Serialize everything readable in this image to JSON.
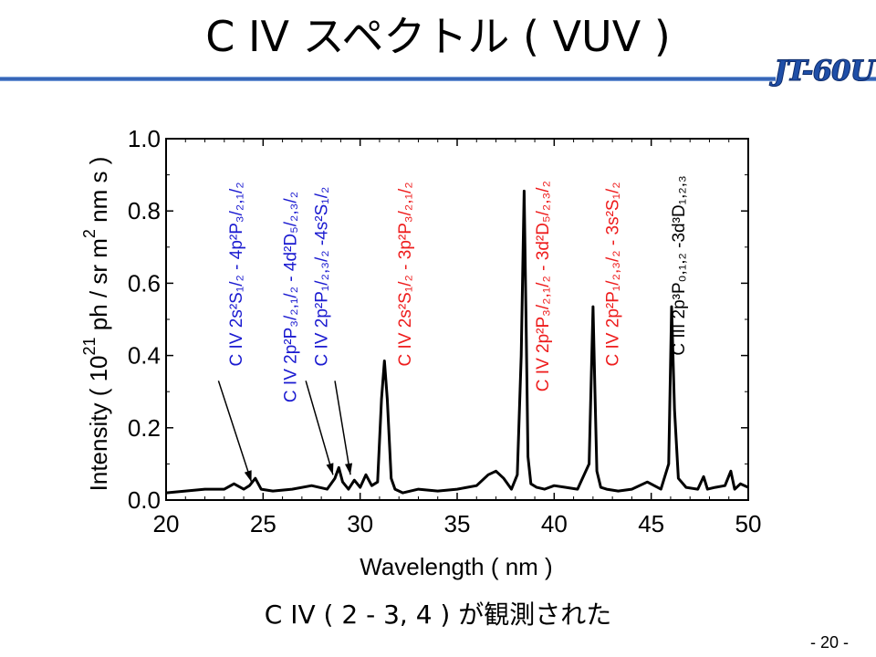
{
  "slide": {
    "title": "C IV スペクトル ( VUV )",
    "logo": "JT-60U",
    "caption": "C IV ( 2 - 3, 4 ) が観測された",
    "page_number": "- 20 -"
  },
  "chart_data": {
    "type": "line",
    "title": "",
    "xlabel": "Wavelength ( nm )",
    "ylabel": "Intensity ( 10^21 ph / sr m^2 nm s )",
    "xlim": [
      20,
      50
    ],
    "ylim": [
      0.0,
      1.0
    ],
    "x_ticks": [
      "20",
      "25",
      "30",
      "35",
      "40",
      "45",
      "50"
    ],
    "y_ticks": [
      "0.0",
      "0.2",
      "0.4",
      "0.6",
      "0.8",
      "1.0"
    ],
    "grid": false,
    "series": [
      {
        "color": "#000000",
        "x": [
          20.0,
          21.0,
          22.0,
          23.0,
          23.5,
          24.0,
          24.3,
          24.6,
          24.9,
          25.5,
          26.5,
          27.5,
          28.3,
          28.7,
          28.9,
          29.1,
          29.4,
          29.7,
          30.0,
          30.3,
          30.6,
          30.9,
          31.1,
          31.25,
          31.4,
          31.6,
          31.8,
          32.2,
          33.0,
          34.0,
          35.0,
          36.0,
          36.6,
          37.0,
          37.4,
          37.8,
          38.1,
          38.3,
          38.45,
          38.55,
          38.65,
          38.8,
          39.1,
          39.5,
          40.0,
          40.6,
          41.2,
          41.8,
          42.0,
          42.1,
          42.2,
          42.4,
          42.7,
          43.3,
          44.0,
          44.8,
          45.5,
          45.9,
          46.05,
          46.2,
          46.4,
          46.8,
          47.4,
          47.7,
          47.9,
          48.3,
          48.8,
          49.1,
          49.3,
          49.6,
          50.0
        ],
        "y": [
          0.02,
          0.025,
          0.03,
          0.03,
          0.045,
          0.03,
          0.04,
          0.06,
          0.03,
          0.025,
          0.03,
          0.04,
          0.03,
          0.06,
          0.09,
          0.05,
          0.03,
          0.055,
          0.035,
          0.07,
          0.04,
          0.05,
          0.28,
          0.385,
          0.28,
          0.06,
          0.03,
          0.02,
          0.03,
          0.025,
          0.03,
          0.04,
          0.07,
          0.08,
          0.06,
          0.03,
          0.07,
          0.4,
          0.855,
          0.5,
          0.12,
          0.045,
          0.035,
          0.03,
          0.04,
          0.035,
          0.03,
          0.1,
          0.535,
          0.3,
          0.08,
          0.035,
          0.03,
          0.025,
          0.03,
          0.05,
          0.03,
          0.1,
          0.535,
          0.25,
          0.06,
          0.035,
          0.03,
          0.065,
          0.03,
          0.035,
          0.04,
          0.08,
          0.03,
          0.045,
          0.035
        ]
      }
    ],
    "annotations": [
      {
        "text": "C IV 2s²S₁/₂ - 4p²P₃/₂,₁/₂",
        "color": "#1a1ad0",
        "x": 23.9,
        "y": 0.37
      },
      {
        "text": "C IV 2p²P₃/₂,₁/₂ - 4d²D₅/₂,₃/₂",
        "color": "#1a1ad0",
        "x": 26.7,
        "y": 0.27
      },
      {
        "text": "C IV 2p²P₁/₂,₃/₂ -4s²S₁/₂",
        "color": "#1a1ad0",
        "x": 28.3,
        "y": 0.37
      },
      {
        "text": "C IV 2s²S₁/₂ - 3p²P₃/₂,₁/₂",
        "color": "#ee1c1c",
        "x": 32.6,
        "y": 0.37
      },
      {
        "text": "C IV 2p²P₃/₂,₁/₂ - 3d²D₅/₂,₃/₂",
        "color": "#ee1c1c",
        "x": 39.7,
        "y": 0.3
      },
      {
        "text": "C IV 2p²P₁/₂,₃/₂ - 3s²S₁/₂",
        "color": "#ee1c1c",
        "x": 43.3,
        "y": 0.37
      },
      {
        "text": "C III 2p³P₀,₁,₂ -3d³D₁,₂,₃",
        "color": "#000000",
        "x": 46.7,
        "y": 0.4
      }
    ],
    "arrows": [
      {
        "from": [
          22.7,
          0.33
        ],
        "to": [
          24.4,
          0.05
        ]
      },
      {
        "from": [
          27.2,
          0.33
        ],
        "to": [
          28.6,
          0.07
        ]
      },
      {
        "from": [
          28.7,
          0.33
        ],
        "to": [
          29.5,
          0.07
        ]
      }
    ]
  }
}
